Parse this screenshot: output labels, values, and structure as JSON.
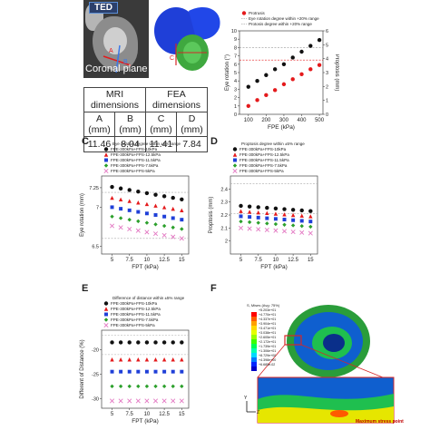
{
  "panel_a": {
    "tag": "TED",
    "caption": "Coronal plane",
    "table": {
      "group_headers": [
        "MRI dimensions",
        "FEA dimensions"
      ],
      "col_headers": [
        "A (mm)",
        "B (mm)",
        "C (mm)",
        "D (mm)"
      ],
      "values": [
        "11.46",
        "8.04",
        "11.41",
        "7.84"
      ]
    },
    "letters": {
      "a": "A",
      "b": "B"
    }
  },
  "panel_c_letter": "C",
  "panel_d_letter": "D",
  "panel_e_letter": "E",
  "panel_f_letter": "F",
  "fea_panel": {
    "colorbar_title": "S, Mises (Avg: 75%)",
    "colorbar_labels": [
      "+5.203e+01",
      "+4.770e+01",
      "+4.337e+01",
      "+3.904e+01",
      "+3.471e+01",
      "+3.038e+01",
      "+2.605e+01",
      "+2.172e+01",
      "+1.739e+01",
      "+1.306e+01",
      "+8.729e+00",
      "+4.398e+00",
      "+6.685e-02"
    ],
    "colorbar_colors": [
      "#ff0000",
      "#ff5a00",
      "#ffa000",
      "#ffd800",
      "#e6ff00",
      "#9bff00",
      "#3cff00",
      "#00ff55",
      "#00ffb0",
      "#00d8ff",
      "#007bff",
      "#0025ff",
      "#0000c8"
    ],
    "max_label": "Maximum stress point",
    "axes": [
      "Y",
      "Z",
      "X"
    ]
  },
  "chart_data": [
    {
      "id": "B",
      "type": "scatter",
      "legend": [
        "Protrusis",
        "Eye rotation degree within +20% range",
        "Protosis degree within +20% range"
      ],
      "xlabel": "FPE (kPa)",
      "ylabel": "Eye rotation (°)",
      "y2label": "Proptosis (mm)",
      "x_ticks": [
        100,
        200,
        300,
        400,
        500
      ],
      "xlim": [
        50,
        520
      ],
      "ylim": [
        0,
        10
      ],
      "y_ticks": [
        0,
        1,
        2,
        3,
        4,
        5,
        6,
        7,
        8,
        9,
        10
      ],
      "y2_ticks": [
        0,
        1,
        2,
        3,
        4,
        5,
        6
      ],
      "series": [
        {
          "name": "Eye rotation",
          "color": "#111111",
          "x": [
            100,
            150,
            200,
            250,
            300,
            350,
            400,
            450,
            500
          ],
          "y": [
            3.3,
            4.0,
            4.7,
            5.4,
            6.0,
            6.8,
            7.5,
            8.2,
            8.9
          ]
        },
        {
          "name": "Protrusis",
          "color": "#e41a1c",
          "x": [
            100,
            150,
            200,
            250,
            300,
            350,
            400,
            450,
            500
          ],
          "y": [
            1.0,
            1.7,
            2.3,
            2.9,
            3.6,
            4.2,
            4.8,
            5.4,
            5.9
          ]
        }
      ],
      "ref_lines": [
        {
          "y": 8.0,
          "color": "#999999"
        },
        {
          "y": 6.5,
          "color": "#e41a1c"
        }
      ]
    },
    {
      "id": "C",
      "type": "scatter",
      "legend_title": "Eye rotation degree within ±5% range",
      "xlabel": "FPT (kPa)",
      "ylabel": "Eye rotation (mm)",
      "x_ticks": [
        "5",
        "7.5",
        "10",
        "12.5",
        "15"
      ],
      "xlim": [
        3.5,
        16
      ],
      "ylim": [
        6.4,
        7.4
      ],
      "y_ticks": [
        "6.5",
        "",
        "7",
        "",
        "7.25"
      ],
      "series": [
        {
          "name": "FPE-300kPa+FPS-10kPa",
          "color": "#111111",
          "marker": "circle",
          "x": [
            5,
            6.25,
            7.5,
            8.75,
            10,
            11.25,
            12.5,
            13.75,
            15
          ],
          "y": [
            7.26,
            7.24,
            7.22,
            7.2,
            7.18,
            7.16,
            7.14,
            7.12,
            7.1
          ]
        },
        {
          "name": "FPE-300kPa+FPS-12.5kPa",
          "color": "#e41a1c",
          "marker": "triangle",
          "x": [
            5,
            6.25,
            7.5,
            8.75,
            10,
            11.25,
            12.5,
            13.75,
            15
          ],
          "y": [
            7.12,
            7.1,
            7.08,
            7.06,
            7.04,
            7.02,
            7.0,
            6.98,
            6.96
          ]
        },
        {
          "name": "FPE-300kPa+FPS-11.5kPa",
          "color": "#1f3fd8",
          "marker": "square",
          "x": [
            5,
            6.25,
            7.5,
            8.75,
            10,
            11.25,
            12.5,
            13.75,
            15
          ],
          "y": [
            7.0,
            6.98,
            6.96,
            6.94,
            6.92,
            6.9,
            6.88,
            6.86,
            6.84
          ]
        },
        {
          "name": "FPE-300kPa+FPS-7.5kPa",
          "color": "#2ca02c",
          "marker": "diamond",
          "x": [
            5,
            6.25,
            7.5,
            8.75,
            10,
            11.25,
            12.5,
            13.75,
            15
          ],
          "y": [
            6.88,
            6.86,
            6.84,
            6.82,
            6.8,
            6.78,
            6.76,
            6.74,
            6.72
          ]
        },
        {
          "name": "FPE-300kPa+FPS-5kPa",
          "color": "#e377c2",
          "marker": "x",
          "x": [
            5,
            6.25,
            7.5,
            8.75,
            10,
            11.25,
            12.5,
            13.75,
            15
          ],
          "y": [
            6.76,
            6.74,
            6.72,
            6.7,
            6.68,
            6.66,
            6.64,
            6.62,
            6.6
          ]
        }
      ],
      "ref_lines": [
        {
          "y": 7.19
        },
        {
          "y": 6.6
        }
      ]
    },
    {
      "id": "D",
      "type": "scatter",
      "legend_title": "Proptosis degree within ±5% range",
      "xlabel": "FPT (kPa)",
      "ylabel": "Proptosis (mm)",
      "x_ticks": [
        "5",
        "7.5",
        "10",
        "12.5",
        "15"
      ],
      "xlim": [
        3.5,
        16
      ],
      "ylim": [
        1.9,
        2.5
      ],
      "y_ticks": [
        "2",
        "2.1",
        "2.2",
        "2.3",
        "2.4"
      ],
      "series": [
        {
          "name": "FPE-300kPa+FPS-10kPa",
          "color": "#111111",
          "marker": "circle",
          "x": [
            5,
            6.25,
            7.5,
            8.75,
            10,
            11.25,
            12.5,
            13.75,
            15
          ],
          "y": [
            2.27,
            2.265,
            2.26,
            2.255,
            2.25,
            2.245,
            2.24,
            2.235,
            2.23
          ]
        },
        {
          "name": "FPE-300kPa+FPS-12.5kPa",
          "color": "#e41a1c",
          "marker": "triangle",
          "x": [
            5,
            6.25,
            7.5,
            8.75,
            10,
            11.25,
            12.5,
            13.75,
            15
          ],
          "y": [
            2.23,
            2.225,
            2.22,
            2.215,
            2.21,
            2.205,
            2.2,
            2.195,
            2.19
          ]
        },
        {
          "name": "FPE-300kPa+FPS-11.5kPa",
          "color": "#1f3fd8",
          "marker": "square",
          "x": [
            5,
            6.25,
            7.5,
            8.75,
            10,
            11.25,
            12.5,
            13.75,
            15
          ],
          "y": [
            2.19,
            2.185,
            2.18,
            2.175,
            2.17,
            2.165,
            2.16,
            2.155,
            2.15
          ]
        },
        {
          "name": "FPE-300kPa+FPS-7.5kPa",
          "color": "#2ca02c",
          "marker": "diamond",
          "x": [
            5,
            6.25,
            7.5,
            8.75,
            10,
            11.25,
            12.5,
            13.75,
            15
          ],
          "y": [
            2.15,
            2.145,
            2.14,
            2.135,
            2.13,
            2.125,
            2.12,
            2.115,
            2.11
          ]
        },
        {
          "name": "FPE-300kPa+FPS-5kPa",
          "color": "#e377c2",
          "marker": "x",
          "x": [
            5,
            6.25,
            7.5,
            8.75,
            10,
            11.25,
            12.5,
            13.75,
            15
          ],
          "y": [
            2.1,
            2.095,
            2.09,
            2.085,
            2.08,
            2.075,
            2.07,
            2.065,
            2.06
          ]
        }
      ],
      "ref_lines": [
        {
          "y": 2.44
        },
        {
          "y": 2.21
        }
      ]
    },
    {
      "id": "E",
      "type": "scatter",
      "legend_title": "Difference of distance within ±5% range",
      "xlabel": "FPT (kPa)",
      "ylabel": "Different of Distance (%)",
      "x_ticks": [
        "5",
        "7.5",
        "10",
        "12.5",
        "15"
      ],
      "xlim": [
        3.5,
        16
      ],
      "ylim": [
        -32,
        -16
      ],
      "y_ticks": [
        "-30",
        "-25",
        "-20"
      ],
      "series": [
        {
          "name": "FPE-300kPa+FPS-10kPa",
          "color": "#111111",
          "marker": "circle",
          "x": [
            5,
            6.25,
            7.5,
            8.75,
            10,
            11.25,
            12.5,
            13.75,
            15
          ],
          "y": [
            -18.5,
            -18.5,
            -18.5,
            -18.5,
            -18.5,
            -18.5,
            -18.5,
            -18.5,
            -18.5
          ]
        },
        {
          "name": "FPE-300kPa+FPS-12.5kPa",
          "color": "#e41a1c",
          "marker": "triangle",
          "x": [
            5,
            6.25,
            7.5,
            8.75,
            10,
            11.25,
            12.5,
            13.75,
            15
          ],
          "y": [
            -22,
            -22,
            -22,
            -22,
            -22,
            -22,
            -22,
            -22,
            -22
          ]
        },
        {
          "name": "FPE-300kPa+FPS-11.5kPa",
          "color": "#1f3fd8",
          "marker": "square",
          "x": [
            5,
            6.25,
            7.5,
            8.75,
            10,
            11.25,
            12.5,
            13.75,
            15
          ],
          "y": [
            -24.5,
            -24.5,
            -24.5,
            -24.5,
            -24.5,
            -24.5,
            -24.5,
            -24.5,
            -24.5
          ]
        },
        {
          "name": "FPE-300kPa+FPS-7.5kPa",
          "color": "#2ca02c",
          "marker": "diamond",
          "x": [
            5,
            6.25,
            7.5,
            8.75,
            10,
            11.25,
            12.5,
            13.75,
            15
          ],
          "y": [
            -27.5,
            -27.5,
            -27.5,
            -27.5,
            -27.5,
            -27.5,
            -27.5,
            -27.5,
            -27.5
          ]
        },
        {
          "name": "FPE-300kPa+FPS-5kPa",
          "color": "#e377c2",
          "marker": "x",
          "x": [
            5,
            6.25,
            7.5,
            8.75,
            10,
            11.25,
            12.5,
            13.75,
            15
          ],
          "y": [
            -30.5,
            -30.5,
            -30.5,
            -30.5,
            -30.5,
            -30.5,
            -30.5,
            -30.5,
            -30.5
          ]
        }
      ],
      "ref_lines": [
        {
          "y": -17
        },
        {
          "y": -21
        }
      ]
    }
  ]
}
